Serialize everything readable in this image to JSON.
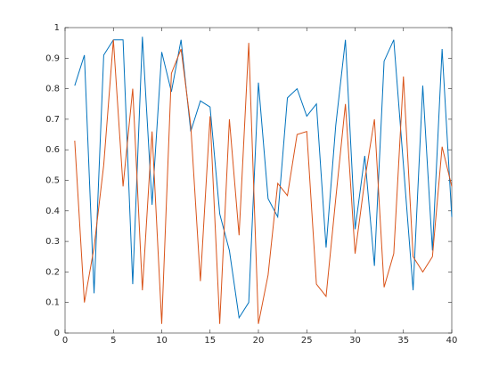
{
  "chart_data": {
    "type": "line",
    "x": [
      1,
      2,
      3,
      4,
      5,
      6,
      7,
      8,
      9,
      10,
      11,
      12,
      13,
      14,
      15,
      16,
      17,
      18,
      19,
      20,
      21,
      22,
      23,
      24,
      25,
      26,
      27,
      28,
      29,
      30,
      31,
      32,
      33,
      34,
      35,
      36,
      37,
      38,
      39,
      40
    ],
    "series": [
      {
        "color": "#0072bd",
        "values": [
          0.81,
          0.91,
          0.13,
          0.91,
          0.96,
          0.96,
          0.16,
          0.97,
          0.42,
          0.92,
          0.79,
          0.96,
          0.66,
          0.76,
          0.74,
          0.39,
          0.27,
          0.05,
          0.1,
          0.82,
          0.44,
          0.38,
          0.77,
          0.8,
          0.71,
          0.75,
          0.28,
          0.68,
          0.96,
          0.34,
          0.58,
          0.22,
          0.89,
          0.96,
          0.55,
          0.14,
          0.81,
          0.27,
          0.93,
          0.38
        ]
      },
      {
        "color": "#d95319",
        "values": [
          0.63,
          0.1,
          0.28,
          0.55,
          0.96,
          0.48,
          0.8,
          0.14,
          0.66,
          0.03,
          0.85,
          0.93,
          0.68,
          0.17,
          0.71,
          0.03,
          0.7,
          0.32,
          0.95,
          0.03,
          0.19,
          0.49,
          0.45,
          0.65,
          0.66,
          0.16,
          0.12,
          0.44,
          0.75,
          0.26,
          0.5,
          0.7,
          0.15,
          0.26,
          0.84,
          0.25,
          0.2,
          0.25,
          0.61,
          0.48
        ]
      }
    ],
    "xlim": [
      0,
      40
    ],
    "xticks": [
      0,
      5,
      10,
      15,
      20,
      25,
      30,
      35,
      40
    ],
    "ylim": [
      0,
      1
    ],
    "yticks": [
      0,
      0.1,
      0.2,
      0.3,
      0.4,
      0.5,
      0.6,
      0.7,
      0.8,
      0.9,
      1
    ],
    "grid": false
  }
}
